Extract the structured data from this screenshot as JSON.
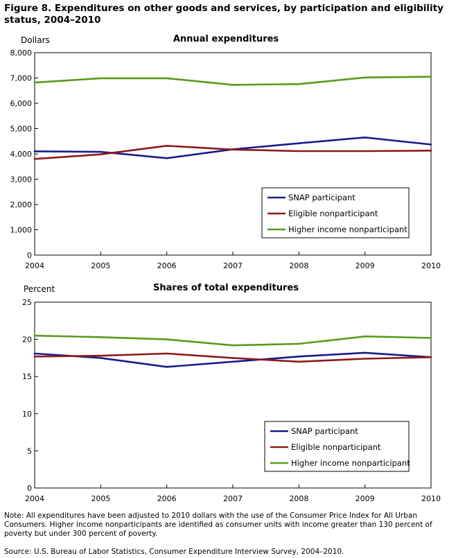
{
  "figure": {
    "title": "Figure 8. Expenditures on other goods and services, by participation and eligibility status, 2004–2010",
    "note": "Note:  All expenditures have been adjusted to 2010 dollars with the use of the Consumer Price Index for All Urban Consumers. Higher income nonparticipants are identified as consumer units with income greater than 130 percent of poverty but under 300 percent of poverty.",
    "source": "Source:  U.S. Bureau of Labor Statistics, Consumer Expenditure Interview Survey, 2004–2010."
  },
  "colors": {
    "snap": "#1a1a8c",
    "eligible": "#8b1a1a",
    "higher": "#5a9a1a"
  },
  "chart_data": [
    {
      "type": "line",
      "title": "Annual expenditures",
      "ylabel": "Dollars",
      "xlabel": "",
      "x": [
        "2004",
        "2005",
        "2006",
        "2007",
        "2008",
        "2009",
        "2010"
      ],
      "ylim": [
        0,
        8000
      ],
      "yticks": [
        0,
        1000,
        2000,
        3000,
        4000,
        5000,
        6000,
        7000,
        8000
      ],
      "ytick_labels": [
        "0",
        "1,000",
        "2,000",
        "3,000",
        "4,000",
        "5,000",
        "6,000",
        "7,000",
        "8,000"
      ],
      "grid": false,
      "legend": "bottom-right",
      "series": [
        {
          "name": "SNAP participant",
          "color_key": "snap",
          "values": [
            4100,
            4080,
            3830,
            4180,
            4420,
            4650,
            4370
          ]
        },
        {
          "name": "Eligible nonparticipant",
          "color_key": "eligible",
          "values": [
            3800,
            3980,
            4320,
            4170,
            4110,
            4110,
            4130
          ]
        },
        {
          "name": "Higher income nonparticipant",
          "color_key": "higher",
          "values": [
            6820,
            6990,
            6990,
            6730,
            6760,
            7020,
            7050
          ]
        }
      ]
    },
    {
      "type": "line",
      "title": "Shares of total expenditures",
      "ylabel": "Percent",
      "xlabel": "",
      "x": [
        "2004",
        "2005",
        "2006",
        "2007",
        "2008",
        "2009",
        "2010"
      ],
      "ylim": [
        0,
        25
      ],
      "yticks": [
        0,
        5,
        10,
        15,
        20,
        25
      ],
      "ytick_labels": [
        "0",
        "5",
        "10",
        "15",
        "20",
        "25"
      ],
      "grid": false,
      "legend": "bottom-right",
      "series": [
        {
          "name": "SNAP participant",
          "color_key": "snap",
          "values": [
            18.1,
            17.5,
            16.3,
            17.0,
            17.7,
            18.2,
            17.6
          ]
        },
        {
          "name": "Eligible nonparticipant",
          "color_key": "eligible",
          "values": [
            17.7,
            17.8,
            18.1,
            17.5,
            17.0,
            17.4,
            17.6
          ]
        },
        {
          "name": "Higher income nonparticipant",
          "color_key": "higher",
          "values": [
            20.5,
            20.3,
            20.0,
            19.2,
            19.4,
            20.4,
            20.2
          ]
        }
      ]
    }
  ]
}
